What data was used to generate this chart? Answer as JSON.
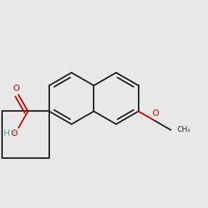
{
  "bg_color": "#e8e8e8",
  "bond_color": "#1a1a1a",
  "o_color": "#cc0000",
  "oh_color": "#4d9999",
  "lw": 1.5,
  "rb": 0.115,
  "lcx": 0.355,
  "lcy": 0.555,
  "figsize": [
    3.0,
    3.0
  ],
  "dpi": 100,
  "xlim": [
    0.04,
    0.96
  ],
  "ylim": [
    0.1,
    0.96
  ]
}
